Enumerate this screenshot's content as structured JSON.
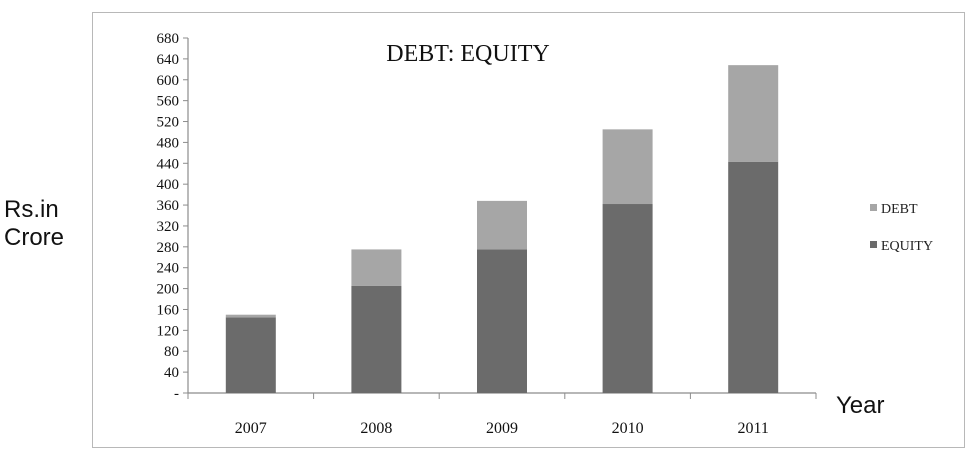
{
  "chart_data": {
    "type": "bar",
    "stacked": true,
    "title": "DEBT: EQUITY",
    "xlabel": "Year",
    "ylabel_lines": [
      "Rs.in",
      "Crore"
    ],
    "categories": [
      "2007",
      "2008",
      "2009",
      "2010",
      "2011"
    ],
    "series": [
      {
        "name": "EQUITY",
        "values": [
          145,
          205,
          275,
          362,
          443
        ],
        "color": "#6b6b6b"
      },
      {
        "name": "DEBT",
        "values": [
          5,
          70,
          93,
          143,
          185
        ],
        "color": "#a6a6a6"
      }
    ],
    "yticks": [
      "-",
      "40",
      "80",
      "120",
      "160",
      "200",
      "240",
      "280",
      "320",
      "360",
      "400",
      "440",
      "480",
      "520",
      "560",
      "600",
      "640",
      "680"
    ],
    "ylim": [
      0,
      680
    ],
    "legend_order": [
      "DEBT",
      "EQUITY"
    ],
    "legend_position": "right",
    "grid": false
  }
}
